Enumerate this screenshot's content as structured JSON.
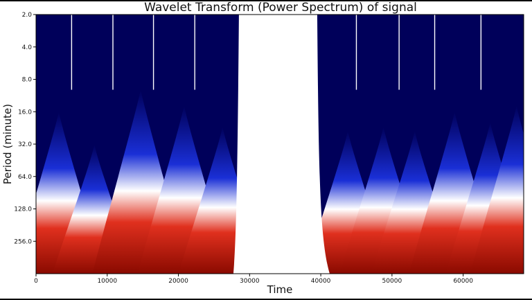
{
  "chart_data": {
    "type": "heatmap",
    "title": "Wavelet Transform (Power Spectrum) of signal",
    "xlabel": "Time",
    "ylabel": "Period (minute)",
    "xlim": [
      0,
      68500
    ],
    "ylim": [
      2.0,
      512.0
    ],
    "y_scale": "log2",
    "y_inverted": true,
    "x_ticks": [
      0,
      10000,
      20000,
      30000,
      40000,
      50000,
      60000
    ],
    "x_tick_labels": [
      "0",
      "10000",
      "20000",
      "30000",
      "40000",
      "50000",
      "60000"
    ],
    "y_ticks": [
      2.0,
      4.0,
      8.0,
      16.0,
      32.0,
      64.0,
      128.0,
      256.0
    ],
    "y_tick_labels": [
      "2.0",
      "4.0",
      "8.0",
      "16.0",
      "32.0",
      "64.0",
      "128.0",
      "256.0"
    ],
    "colormap": {
      "low": "#00005a",
      "mid_low": "#1a2fd6",
      "mid": "#ffffff",
      "mid_high": "#e0301e",
      "high": "#8a0a00"
    },
    "data_gap": {
      "from": 28500,
      "to": 39500
    },
    "vertical_gap_lines": [
      5000,
      10800,
      16500,
      22300,
      45000,
      51000,
      56000,
      62500
    ],
    "bursts": [
      {
        "x": 3200,
        "period": 16
      },
      {
        "x": 8200,
        "period": 32
      },
      {
        "x": 14700,
        "period": 10
      },
      {
        "x": 20800,
        "period": 14
      },
      {
        "x": 26200,
        "period": 22
      },
      {
        "x": 43800,
        "period": 24
      },
      {
        "x": 48800,
        "period": 22
      },
      {
        "x": 53200,
        "period": 24
      },
      {
        "x": 58800,
        "period": 16
      },
      {
        "x": 63800,
        "period": 20
      },
      {
        "x": 67500,
        "period": 14
      }
    ],
    "grid": false,
    "legend": "none"
  }
}
